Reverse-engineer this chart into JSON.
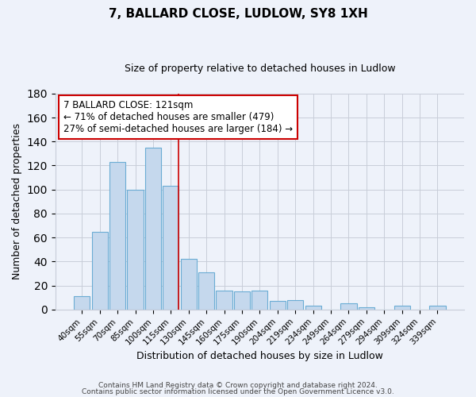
{
  "title": "7, BALLARD CLOSE, LUDLOW, SY8 1XH",
  "subtitle": "Size of property relative to detached houses in Ludlow",
  "xlabel": "Distribution of detached houses by size in Ludlow",
  "ylabel": "Number of detached properties",
  "bar_labels": [
    "40sqm",
    "55sqm",
    "70sqm",
    "85sqm",
    "100sqm",
    "115sqm",
    "130sqm",
    "145sqm",
    "160sqm",
    "175sqm",
    "190sqm",
    "204sqm",
    "219sqm",
    "234sqm",
    "249sqm",
    "264sqm",
    "279sqm",
    "294sqm",
    "309sqm",
    "324sqm",
    "339sqm"
  ],
  "bar_values": [
    11,
    65,
    123,
    100,
    135,
    103,
    42,
    31,
    16,
    15,
    16,
    7,
    8,
    3,
    0,
    5,
    2,
    0,
    3,
    0,
    3
  ],
  "bar_color": "#c5d8ed",
  "bar_edge_color": "#6aacd4",
  "ylim": [
    0,
    180
  ],
  "yticks": [
    0,
    20,
    40,
    60,
    80,
    100,
    120,
    140,
    160,
    180
  ],
  "vline_x_index": 5,
  "vline_color": "#cc0000",
  "annotation_title": "7 BALLARD CLOSE: 121sqm",
  "annotation_line1": "← 71% of detached houses are smaller (479)",
  "annotation_line2": "27% of semi-detached houses are larger (184) →",
  "annotation_box_color": "#ffffff",
  "annotation_box_edge": "#cc0000",
  "footer1": "Contains HM Land Registry data © Crown copyright and database right 2024.",
  "footer2": "Contains public sector information licensed under the Open Government Licence v3.0.",
  "background_color": "#eef2fa",
  "plot_background": "#eef2fa",
  "grid_color": "#c8cdd8",
  "title_fontsize": 11,
  "subtitle_fontsize": 9
}
